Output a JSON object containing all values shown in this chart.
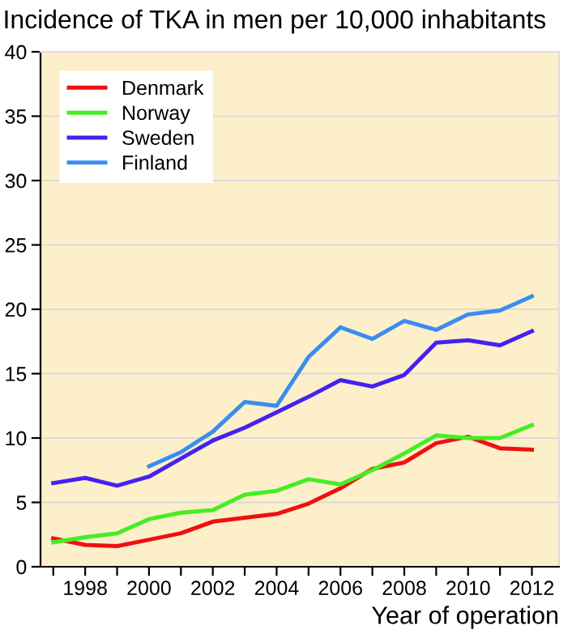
{
  "chart_data": {
    "type": "line",
    "title": "Incidence of TKA in men per 10,000 inhabitants",
    "xlabel": "Year of operation",
    "xlim": [
      1996.6,
      2012.85
    ],
    "ylim": [
      0,
      40
    ],
    "xticks": [
      {
        "value": 1997,
        "label": null
      },
      1998,
      {
        "value": 1999,
        "label": null
      },
      2000,
      {
        "value": 2001,
        "label": null
      },
      2002,
      {
        "value": 2003,
        "label": null
      },
      2004,
      {
        "value": 2005,
        "label": null
      },
      2006,
      {
        "value": 2007,
        "label": null
      },
      2008,
      {
        "value": 2009,
        "label": null
      },
      2010,
      {
        "value": 2011,
        "label": null
      },
      2012
    ],
    "yticks": [
      0,
      5,
      10,
      15,
      20,
      25,
      30,
      35,
      40
    ],
    "grid": "y",
    "legend": "top left",
    "marker": "none",
    "line_style": "solid",
    "series": [
      {
        "name": "Denmark",
        "color": "#ee1111",
        "x": [
          1997,
          1998,
          1999,
          2000,
          2001,
          2002,
          2003,
          2004,
          2005,
          2006,
          2007,
          2008,
          2009,
          2010,
          2011,
          2012
        ],
        "values": [
          2.2,
          1.7,
          1.6,
          2.1,
          2.6,
          3.5,
          3.8,
          4.1,
          4.9,
          6.1,
          7.6,
          8.1,
          9.6,
          10.1,
          9.2,
          9.1
        ]
      },
      {
        "name": "Norway",
        "color": "#44ee22",
        "x": [
          1997,
          1998,
          1999,
          2000,
          2001,
          2002,
          2003,
          2004,
          2005,
          2006,
          2007,
          2008,
          2009,
          2010,
          2011,
          2012
        ],
        "values": [
          1.9,
          2.3,
          2.6,
          3.7,
          4.2,
          4.4,
          5.6,
          5.9,
          6.8,
          6.4,
          7.5,
          8.8,
          10.2,
          10.0,
          10.0,
          11.0
        ]
      },
      {
        "name": "Sweden",
        "color": "#4422ee",
        "x": [
          1997,
          1998,
          1999,
          2000,
          2001,
          2002,
          2003,
          2004,
          2005,
          2006,
          2007,
          2008,
          2009,
          2010,
          2011,
          2012
        ],
        "values": [
          6.5,
          6.9,
          6.3,
          7.0,
          8.4,
          9.8,
          10.8,
          12.0,
          13.2,
          14.5,
          14.0,
          14.9,
          17.4,
          17.6,
          17.2,
          18.3
        ]
      },
      {
        "name": "Finland",
        "color": "#3a8cf0",
        "x": [
          2000,
          2001,
          2002,
          2003,
          2004,
          2005,
          2006,
          2007,
          2008,
          2009,
          2010,
          2011,
          2012
        ],
        "values": [
          7.8,
          8.9,
          10.5,
          12.8,
          12.5,
          16.3,
          18.6,
          17.7,
          19.1,
          18.4,
          19.6,
          19.9,
          21.0
        ]
      }
    ]
  }
}
